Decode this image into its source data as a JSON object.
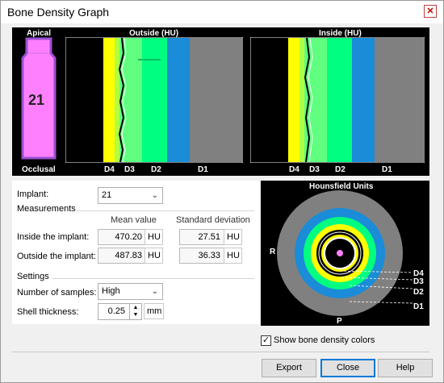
{
  "window": {
    "title": "Bone Density Graph",
    "close_glyph": "✕"
  },
  "graph": {
    "apical_label": "Apical",
    "occlusal_label": "Occlusal",
    "implant_number": "21",
    "outside_header": "Outside (HU)",
    "inside_header": "Inside (HU)",
    "outside_ticks": [
      "D4",
      "D3",
      "D2",
      "D1"
    ],
    "inside_ticks": [
      "D4",
      "D3",
      "D2",
      "D1"
    ],
    "colors": {
      "d4": "#ffff00",
      "d3": "#00ff80",
      "d3b": "#80ff80",
      "d2": "#1a8cd8",
      "d1": "#808080",
      "implant": "#ff80ff"
    }
  },
  "form": {
    "implant_label": "Implant:",
    "implant_value": "21",
    "measurements_label": "Measurements",
    "mean_header": "Mean value",
    "std_header": "Standard deviation",
    "rows": [
      {
        "label": "Inside the implant:",
        "mean": "470.20",
        "mean_unit": "HU",
        "std": "27.51",
        "std_unit": "HU"
      },
      {
        "label": "Outside the implant:",
        "mean": "487.83",
        "mean_unit": "HU",
        "std": "36.33",
        "std_unit": "HU"
      }
    ],
    "settings_label": "Settings",
    "samples_label": "Number of samples:",
    "samples_value": "High",
    "shell_label": "Shell thickness:",
    "shell_value": "0.25",
    "shell_unit": "mm"
  },
  "hu_panel": {
    "title": "Hounsfield Units",
    "left_label": "R",
    "bottom_label": "P",
    "levels": [
      "D4",
      "D3",
      "D2",
      "D1"
    ]
  },
  "show_colors": {
    "label": "Show bone density colors",
    "checked": true,
    "check_glyph": "✓"
  },
  "buttons": {
    "export": "Export",
    "close": "Close",
    "help": "Help"
  }
}
